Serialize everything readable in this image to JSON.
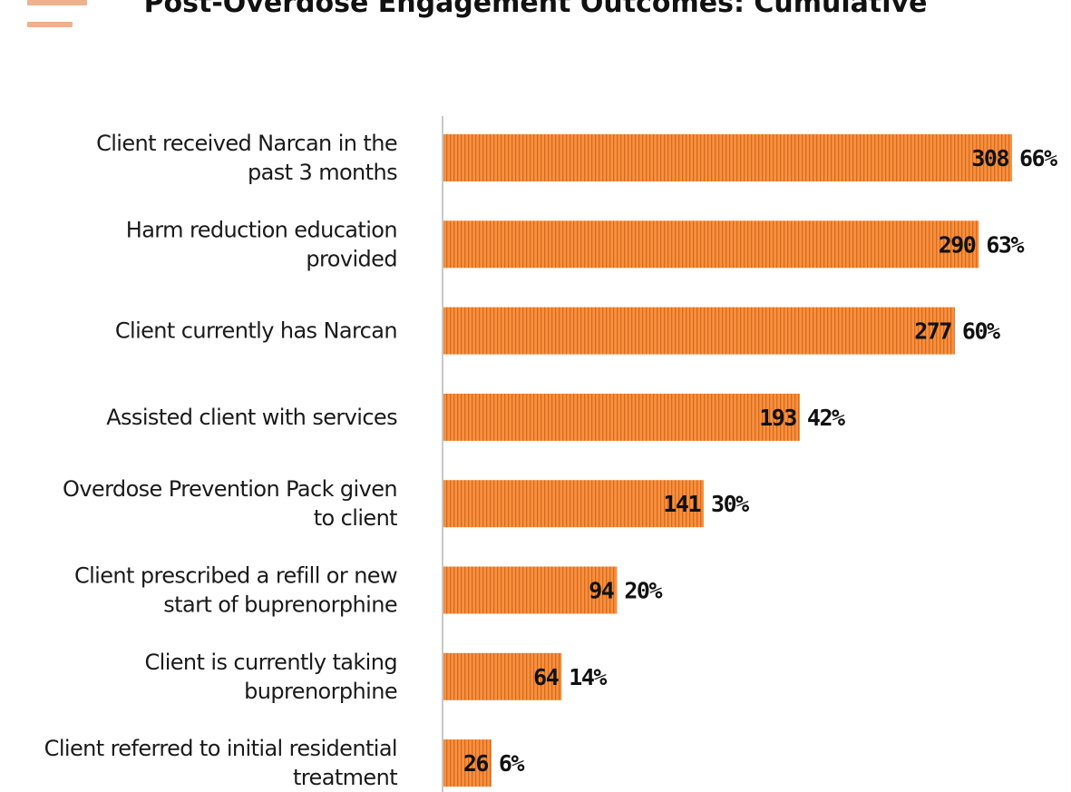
{
  "colors": {
    "bar": "#f7913f",
    "bar_stripe": "#d96a1e",
    "menu_icon": "#efb08c",
    "axis": "#c8c8c8"
  },
  "icons": {
    "menu": "menu-icon"
  },
  "chart_data": {
    "type": "bar",
    "orientation": "horizontal",
    "title": "Post-Overdose Engagement Outcomes: Cumulative",
    "categories": [
      [
        "Client received Narcan in the",
        "past 3 months"
      ],
      [
        "Harm reduction education",
        "provided"
      ],
      [
        "Client currently has Narcan"
      ],
      [
        "Assisted client with services"
      ],
      [
        "Overdose Prevention Pack given",
        "to client"
      ],
      [
        "Client prescribed a refill or new",
        "start of buprenorphine"
      ],
      [
        "Client is currently taking",
        "buprenorphine"
      ],
      [
        "Client referred to initial residential",
        "treatment"
      ]
    ],
    "values": [
      308,
      290,
      277,
      193,
      141,
      94,
      64,
      26
    ],
    "percent_labels": [
      "66%",
      "63%",
      "60%",
      "42%",
      "30%",
      "20%",
      "14%",
      "6%"
    ],
    "grid": false,
    "legend": "none"
  }
}
